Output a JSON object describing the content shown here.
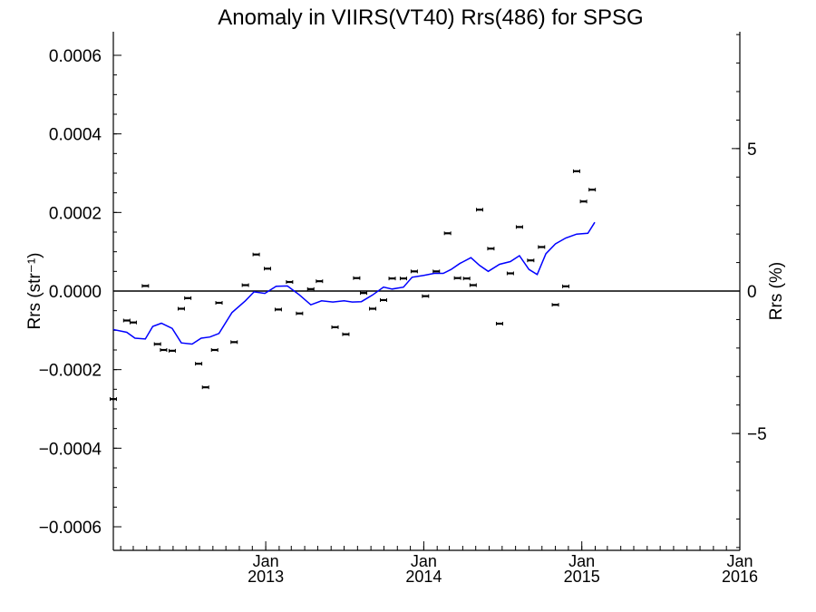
{
  "chart_data": {
    "type": "scatter",
    "title": "Anomaly in VIIRS(VT40) Rrs(486) for SPSG",
    "ylabel": "Rrs (str⁻¹)",
    "ylabel_right": "Rrs (%)",
    "xlabel": "",
    "grid": false,
    "ylim": [
      -0.00066,
      0.00066
    ],
    "ylim_right": [
      -9.1,
      9.1
    ],
    "xlim": [
      "2012-01-15",
      "2016-01-01"
    ],
    "zero_line": true,
    "y_ticks": [
      {
        "value": 0.0006,
        "label": "0.0006"
      },
      {
        "value": 0.0004,
        "label": "0.0004"
      },
      {
        "value": 0.0002,
        "label": "0.0002"
      },
      {
        "value": 0.0,
        "label": "0.0000"
      },
      {
        "value": -0.0002,
        "label": "−0.0002"
      },
      {
        "value": -0.0004,
        "label": "−0.0004"
      },
      {
        "value": -0.0006,
        "label": "−0.0006"
      }
    ],
    "y_ticks_right": [
      {
        "value": 5,
        "label": "5"
      },
      {
        "value": 0,
        "label": "0"
      },
      {
        "value": -5,
        "label": "−5"
      }
    ],
    "x_ticks": [
      {
        "date": "2013-01-01",
        "month": "Jan",
        "year": "2013"
      },
      {
        "date": "2014-01-01",
        "month": "Jan",
        "year": "2014"
      },
      {
        "date": "2015-01-01",
        "month": "Jan",
        "year": "2015"
      },
      {
        "date": "2016-01-01",
        "month": "Jan",
        "year": "2016"
      }
    ],
    "series": [
      {
        "kind": "points",
        "color": "#000000",
        "points": [
          {
            "x": "2012-01-15",
            "y": -0.000275
          },
          {
            "x": "2012-02-15",
            "y": -7.5e-05
          },
          {
            "x": "2012-03-01",
            "y": -8e-05
          },
          {
            "x": "2012-03-29",
            "y": 1.3e-05
          },
          {
            "x": "2012-04-26",
            "y": -0.000135
          },
          {
            "x": "2012-05-10",
            "y": -0.00015
          },
          {
            "x": "2012-05-30",
            "y": -0.000152
          },
          {
            "x": "2012-06-20",
            "y": -4.5e-05
          },
          {
            "x": "2012-07-05",
            "y": -1.8e-05
          },
          {
            "x": "2012-07-30",
            "y": -0.000185
          },
          {
            "x": "2012-08-15",
            "y": -0.000245
          },
          {
            "x": "2012-09-05",
            "y": -0.00015
          },
          {
            "x": "2012-09-15",
            "y": -3e-05
          },
          {
            "x": "2012-10-20",
            "y": -0.00013
          },
          {
            "x": "2012-11-15",
            "y": 1.5e-05
          },
          {
            "x": "2012-12-10",
            "y": 9.3e-05
          },
          {
            "x": "2013-01-05",
            "y": 5.7e-05
          },
          {
            "x": "2013-01-30",
            "y": -4.7e-05
          },
          {
            "x": "2013-02-25",
            "y": 2.3e-05
          },
          {
            "x": "2013-03-20",
            "y": -5.7e-05
          },
          {
            "x": "2013-04-15",
            "y": 5e-06
          },
          {
            "x": "2013-05-05",
            "y": 2.5e-05
          },
          {
            "x": "2013-06-10",
            "y": -9.2e-05
          },
          {
            "x": "2013-07-05",
            "y": -0.00011
          },
          {
            "x": "2013-07-30",
            "y": 3.3e-05
          },
          {
            "x": "2013-08-15",
            "y": -5e-06
          },
          {
            "x": "2013-09-05",
            "y": -4.5e-05
          },
          {
            "x": "2013-09-30",
            "y": -2.3e-05
          },
          {
            "x": "2013-10-20",
            "y": 3.2e-05
          },
          {
            "x": "2013-11-15",
            "y": 3.2e-05
          },
          {
            "x": "2013-12-10",
            "y": 5e-05
          },
          {
            "x": "2014-01-05",
            "y": -1.3e-05
          },
          {
            "x": "2014-01-30",
            "y": 5e-05
          },
          {
            "x": "2014-02-25",
            "y": 0.000147
          },
          {
            "x": "2014-03-20",
            "y": 3.3e-05
          },
          {
            "x": "2014-04-10",
            "y": 3.2e-05
          },
          {
            "x": "2014-04-25",
            "y": 1.5e-05
          },
          {
            "x": "2014-05-10",
            "y": 0.000207
          },
          {
            "x": "2014-06-05",
            "y": 0.000108
          },
          {
            "x": "2014-06-25",
            "y": -8.3e-05
          },
          {
            "x": "2014-07-20",
            "y": 4.5e-05
          },
          {
            "x": "2014-08-10",
            "y": 0.000163
          },
          {
            "x": "2014-09-05",
            "y": 7.8e-05
          },
          {
            "x": "2014-09-30",
            "y": 0.000112
          },
          {
            "x": "2014-11-01",
            "y": -3.5e-05
          },
          {
            "x": "2014-11-25",
            "y": 1.2e-05
          },
          {
            "x": "2014-12-20",
            "y": 0.000305
          },
          {
            "x": "2015-01-05",
            "y": 0.000228
          },
          {
            "x": "2015-01-25",
            "y": 0.000258
          }
        ]
      },
      {
        "kind": "line",
        "color": "#0000ff",
        "points": [
          {
            "x": "2012-01-15",
            "y": -9.8e-05
          },
          {
            "x": "2012-02-15",
            "y": -0.000105
          },
          {
            "x": "2012-03-05",
            "y": -0.00012
          },
          {
            "x": "2012-03-29",
            "y": -0.000122
          },
          {
            "x": "2012-04-15",
            "y": -9e-05
          },
          {
            "x": "2012-05-05",
            "y": -8.2e-05
          },
          {
            "x": "2012-05-30",
            "y": -9.5e-05
          },
          {
            "x": "2012-06-20",
            "y": -0.000132
          },
          {
            "x": "2012-07-15",
            "y": -0.000135
          },
          {
            "x": "2012-08-05",
            "y": -0.00012
          },
          {
            "x": "2012-08-25",
            "y": -0.000117
          },
          {
            "x": "2012-09-15",
            "y": -0.000108
          },
          {
            "x": "2012-10-15",
            "y": -5.5e-05
          },
          {
            "x": "2012-11-15",
            "y": -2.5e-05
          },
          {
            "x": "2012-12-05",
            "y": -2e-06
          },
          {
            "x": "2012-12-30",
            "y": -6e-06
          },
          {
            "x": "2013-01-25",
            "y": 1.2e-05
          },
          {
            "x": "2013-02-20",
            "y": 1.3e-05
          },
          {
            "x": "2013-03-20",
            "y": -1e-05
          },
          {
            "x": "2013-04-15",
            "y": -3.5e-05
          },
          {
            "x": "2013-05-10",
            "y": -2.5e-05
          },
          {
            "x": "2013-06-05",
            "y": -2.8e-05
          },
          {
            "x": "2013-07-01",
            "y": -2.5e-05
          },
          {
            "x": "2013-07-20",
            "y": -2.8e-05
          },
          {
            "x": "2013-08-10",
            "y": -2.7e-05
          },
          {
            "x": "2013-09-05",
            "y": -1e-05
          },
          {
            "x": "2013-09-30",
            "y": 1e-05
          },
          {
            "x": "2013-10-20",
            "y": 5e-06
          },
          {
            "x": "2013-11-15",
            "y": 1e-05
          },
          {
            "x": "2013-12-05",
            "y": 3.5e-05
          },
          {
            "x": "2014-01-01",
            "y": 4e-05
          },
          {
            "x": "2014-01-25",
            "y": 4.5e-05
          },
          {
            "x": "2014-02-15",
            "y": 4.5e-05
          },
          {
            "x": "2014-03-05",
            "y": 5.5e-05
          },
          {
            "x": "2014-03-25",
            "y": 7e-05
          },
          {
            "x": "2014-04-20",
            "y": 8.5e-05
          },
          {
            "x": "2014-05-10",
            "y": 6.5e-05
          },
          {
            "x": "2014-05-30",
            "y": 5e-05
          },
          {
            "x": "2014-06-25",
            "y": 6.8e-05
          },
          {
            "x": "2014-07-20",
            "y": 7.5e-05
          },
          {
            "x": "2014-08-10",
            "y": 9e-05
          },
          {
            "x": "2014-09-01",
            "y": 5.5e-05
          },
          {
            "x": "2014-09-20",
            "y": 4.2e-05
          },
          {
            "x": "2014-10-10",
            "y": 9.5e-05
          },
          {
            "x": "2014-11-01",
            "y": 0.00012
          },
          {
            "x": "2014-11-25",
            "y": 0.000135
          },
          {
            "x": "2014-12-20",
            "y": 0.000145
          },
          {
            "x": "2015-01-15",
            "y": 0.000147
          },
          {
            "x": "2015-01-31",
            "y": 0.000175
          }
        ]
      }
    ]
  }
}
